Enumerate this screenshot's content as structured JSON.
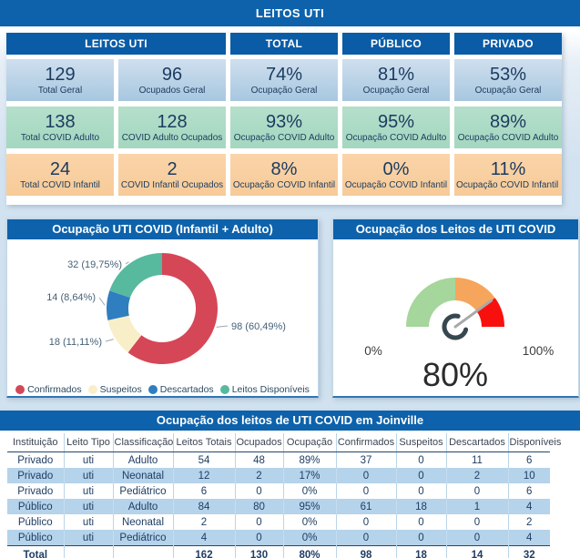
{
  "page": {
    "title": "LEITOS UTI"
  },
  "colors": {
    "accent_blue": "#0d62ab",
    "card_header_blue": "#0a5ca6",
    "card_blue": "#a7c7e0",
    "card_green": "#a4d7c0",
    "card_orange": "#f7cb98",
    "table_stripe": "#b5d3ea"
  },
  "cards": {
    "group_header": "LEITOS UTI",
    "col_headers": [
      "TOTAL",
      "PÚBLICO",
      "PRIVADO"
    ],
    "rows": [
      {
        "tone": "blue",
        "cells": [
          {
            "value": "129",
            "label": "Total Geral"
          },
          {
            "value": "96",
            "label": "Ocupados Geral"
          },
          {
            "value": "74%",
            "label": "Ocupação Geral"
          },
          {
            "value": "81%",
            "label": "Ocupação Geral"
          },
          {
            "value": "53%",
            "label": "Ocupação Geral"
          }
        ]
      },
      {
        "tone": "green",
        "cells": [
          {
            "value": "138",
            "label": "Total COVID Adulto"
          },
          {
            "value": "128",
            "label": "COVID Adulto Ocupados"
          },
          {
            "value": "93%",
            "label": "Ocupação COVID Adulto"
          },
          {
            "value": "95%",
            "label": "Ocupação COVID Adulto"
          },
          {
            "value": "89%",
            "label": "Ocupação COVID Adulto"
          }
        ]
      },
      {
        "tone": "orange",
        "cells": [
          {
            "value": "24",
            "label": "Total COVID Infantil"
          },
          {
            "value": "2",
            "label": "COVID Infantil Ocupados"
          },
          {
            "value": "8%",
            "label": "Ocupação COVID Infantil"
          },
          {
            "value": "0%",
            "label": "Ocupação COVID Infantil"
          },
          {
            "value": "11%",
            "label": "Ocupação COVID Infantil ..."
          }
        ]
      }
    ]
  },
  "chart_data": [
    {
      "type": "pie",
      "variant": "donut",
      "title": "Ocupação UTI COVID (Infantil + Adulto)",
      "total": 162,
      "legend_position": "bottom",
      "slices": [
        {
          "name": "Confirmados",
          "value": 98,
          "pct": "60,49%",
          "label": "98 (60,49%)",
          "color": "#d54757"
        },
        {
          "name": "Suspeitos",
          "value": 18,
          "pct": "11,11%",
          "label": "18 (11,11%)",
          "color": "#f8efc9"
        },
        {
          "name": "Descartados",
          "value": 14,
          "pct": "8,64%",
          "label": "14 (8,64%)",
          "color": "#2f7ec0"
        },
        {
          "name": "Leitos Disponíveis",
          "value": 32,
          "pct": "19,75%",
          "label": "32 (19,75%)",
          "color": "#57b99e"
        }
      ]
    },
    {
      "type": "gauge",
      "title": "Ocupação dos Leitos de UTI COVID",
      "value_pct": 80,
      "value_label": "80%",
      "min_label": "0%",
      "max_label": "100%",
      "needle_color": "#a8a8a8",
      "bands": [
        {
          "from_pct": 0,
          "to_pct": 50,
          "color": "#a5d69b"
        },
        {
          "from_pct": 50,
          "to_pct": 80,
          "color": "#f6a55c"
        },
        {
          "from_pct": 80,
          "to_pct": 100,
          "color": "#f8100e"
        }
      ]
    },
    {
      "type": "table",
      "title": "Ocupação dos leitos de UTI COVID em Joinville",
      "headers": [
        "Instituição",
        "Leito Tipo",
        "Classificação",
        "Leitos Totais",
        "Ocupados",
        "Ocupação",
        "Confirmados",
        "Suspeitos",
        "Descartados",
        "Disponíveis"
      ],
      "rows": [
        [
          "Privado",
          "uti",
          "Adulto",
          "54",
          "48",
          "89%",
          "37",
          "0",
          "11",
          "6"
        ],
        [
          "Privado",
          "uti",
          "Neonatal",
          "12",
          "2",
          "17%",
          "0",
          "0",
          "2",
          "10"
        ],
        [
          "Privado",
          "uti",
          "Pediátrico",
          "6",
          "0",
          "0%",
          "0",
          "0",
          "0",
          "6"
        ],
        [
          "Público",
          "uti",
          "Adulto",
          "84",
          "80",
          "95%",
          "61",
          "18",
          "1",
          "4"
        ],
        [
          "Público",
          "uti",
          "Neonatal",
          "2",
          "0",
          "0%",
          "0",
          "0",
          "0",
          "2"
        ],
        [
          "Público",
          "uti",
          "Pediátrico",
          "4",
          "0",
          "0%",
          "0",
          "0",
          "0",
          "4"
        ]
      ],
      "total_row": [
        "Total",
        "",
        "",
        "162",
        "130",
        "80%",
        "98",
        "18",
        "14",
        "32"
      ]
    }
  ]
}
